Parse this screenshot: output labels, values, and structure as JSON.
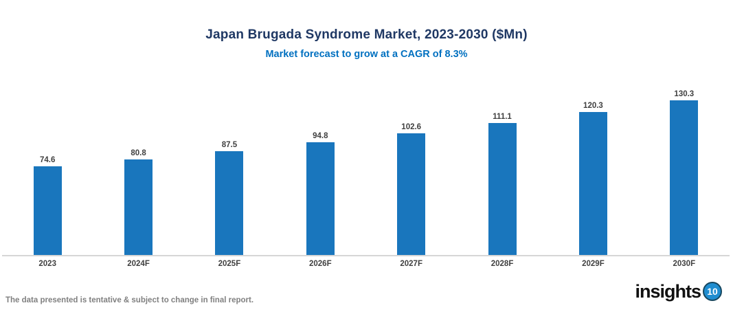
{
  "header": {
    "title": "Japan Brugada Syndrome Market, 2023-2030 ($Mn)",
    "subtitle": "Market forecast to grow at a CAGR of 8.3%",
    "title_color": "#1F3864",
    "subtitle_color": "#0070C0"
  },
  "chart_data": {
    "type": "bar",
    "title": "Japan Brugada Syndrome Market, 2023-2030 ($Mn)",
    "subtitle": "Market forecast to grow at a CAGR of 8.3%",
    "categories": [
      "2023",
      "2024F",
      "2025F",
      "2026F",
      "2027F",
      "2028F",
      "2029F",
      "2030F"
    ],
    "values": [
      74.6,
      80.8,
      87.5,
      94.8,
      102.6,
      111.1,
      120.3,
      130.3
    ],
    "unit": "$Mn",
    "cagr": "8.3%",
    "ylim": [
      0,
      130.3
    ],
    "grid": false,
    "legend": "none",
    "data_labels": true,
    "bar_color": "#1976BD",
    "value_label_color": "#404040",
    "axis_line_color": "#D6D6D6"
  },
  "footer": {
    "note": "The data presented is tentative & subject to change in final report.",
    "logo_text": "insights",
    "logo_badge": "10"
  }
}
